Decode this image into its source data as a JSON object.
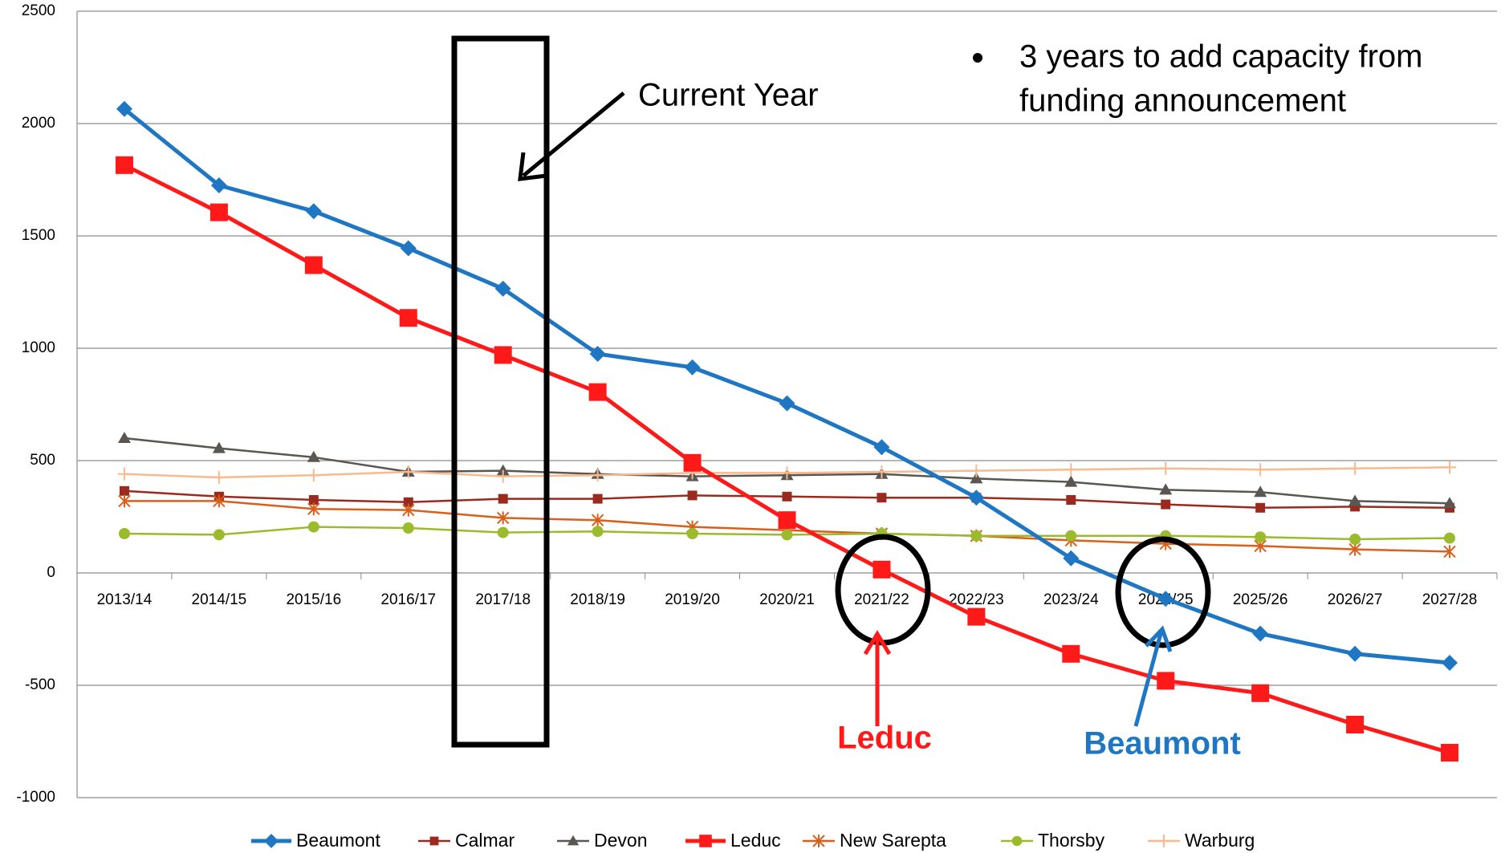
{
  "chart_data": {
    "type": "line",
    "categories": [
      "2013/14",
      "2014/15",
      "2015/16",
      "2016/17",
      "2017/18",
      "2018/19",
      "2019/20",
      "2020/21",
      "2021/22",
      "2022/23",
      "2023/24",
      "2024/25",
      "2025/26",
      "2026/27",
      "2027/28"
    ],
    "series": [
      {
        "name": "Beaumont",
        "color": "#1f77c4",
        "marker": "diamond",
        "width": 5,
        "values": [
          2065,
          1725,
          1610,
          1445,
          1265,
          975,
          915,
          755,
          560,
          335,
          65,
          -115,
          -270,
          -360,
          -400
        ]
      },
      {
        "name": "Calmar",
        "color": "#9b2a1e",
        "marker": "square",
        "width": 2.5,
        "values": [
          365,
          340,
          325,
          315,
          330,
          330,
          345,
          340,
          335,
          335,
          325,
          305,
          290,
          295,
          290
        ]
      },
      {
        "name": "Devon",
        "color": "#5a5652",
        "marker": "triangle",
        "width": 2.5,
        "values": [
          600,
          555,
          515,
          450,
          455,
          440,
          430,
          435,
          440,
          420,
          405,
          370,
          360,
          320,
          310
        ]
      },
      {
        "name": "Leduc",
        "color": "#ff1a1a",
        "marker": "bigsquare",
        "width": 5,
        "values": [
          1815,
          1605,
          1370,
          1135,
          970,
          805,
          490,
          235,
          15,
          -195,
          -360,
          -480,
          -535,
          -675,
          -800
        ]
      },
      {
        "name": "New Sarepta",
        "color": "#d95f1a",
        "marker": "star",
        "width": 2.5,
        "values": [
          320,
          320,
          285,
          280,
          245,
          235,
          205,
          190,
          175,
          165,
          145,
          130,
          120,
          105,
          95
        ]
      },
      {
        "name": "Thorsby",
        "color": "#9bbb2c",
        "marker": "circle",
        "width": 2.5,
        "values": [
          175,
          170,
          205,
          200,
          180,
          185,
          175,
          170,
          175,
          165,
          165,
          165,
          160,
          150,
          155
        ]
      },
      {
        "name": "Warburg",
        "color": "#f9b98e",
        "marker": "plus",
        "width": 2.5,
        "values": [
          440,
          425,
          435,
          450,
          430,
          435,
          445,
          445,
          450,
          455,
          460,
          465,
          460,
          465,
          470
        ]
      }
    ],
    "ylim": [
      -1000,
      2500
    ],
    "yticks": [
      -1000,
      -500,
      0,
      500,
      1000,
      1500,
      2000,
      2500
    ],
    "grid": true,
    "legend": "bottom",
    "annotations": {
      "current_year": "Current Year",
      "bullet": [
        "3 years to add capacity from",
        "funding announcement"
      ],
      "leduc": "Leduc",
      "beaumont": "Beaumont"
    }
  }
}
